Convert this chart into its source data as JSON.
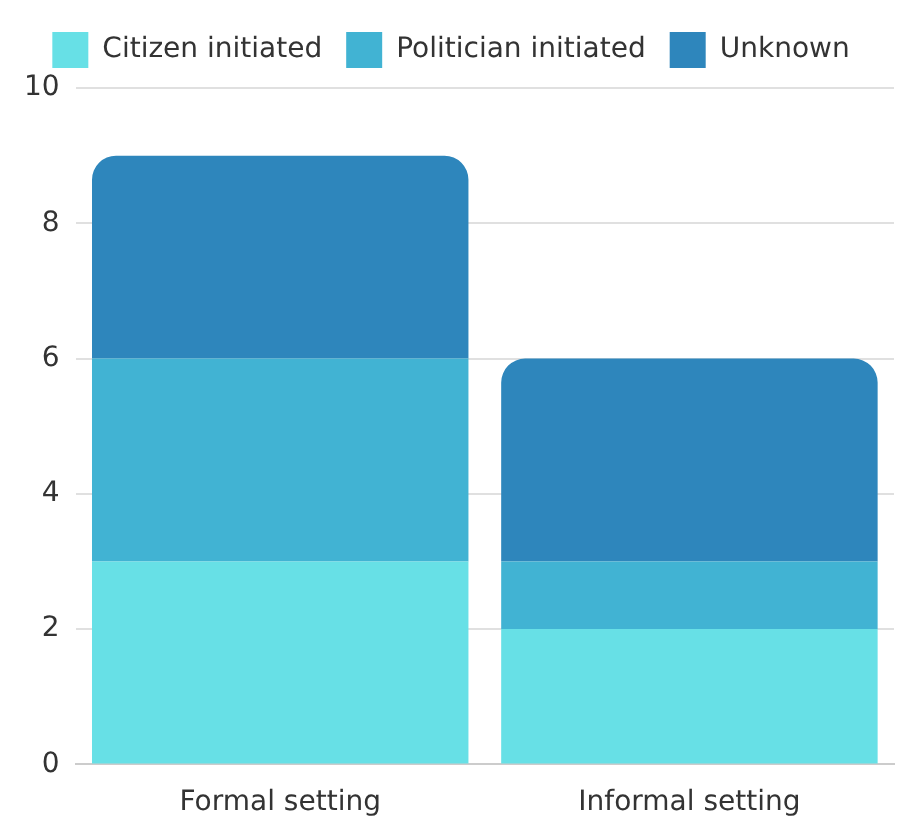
{
  "chart_data": {
    "type": "bar",
    "stacked": true,
    "categories": [
      "Formal setting",
      "Informal setting"
    ],
    "series": [
      {
        "name": "Citizen initiated",
        "color": "#67e0e6",
        "values": [
          3,
          2
        ]
      },
      {
        "name": "Politician initiated",
        "color": "#41b3d3",
        "values": [
          3,
          1
        ]
      },
      {
        "name": "Unknown",
        "color": "#2e86bc",
        "values": [
          3,
          3
        ]
      }
    ],
    "ylim": [
      0,
      10
    ],
    "yticks": [
      0,
      2,
      4,
      6,
      8,
      10
    ],
    "grid": "y",
    "legend": "top"
  }
}
